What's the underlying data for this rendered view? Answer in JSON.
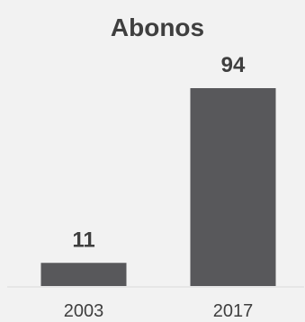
{
  "chart_data": {
    "type": "bar",
    "title": "Abonos",
    "categories": [
      "2003",
      "2017"
    ],
    "values": [
      11,
      94
    ],
    "data_labels": [
      "11",
      "94"
    ],
    "xlabel": "",
    "ylabel": "",
    "ylim": [
      0,
      94
    ],
    "grid": false,
    "legend": "none",
    "bar_color": "#58585b",
    "axis_color": "#d9d9d9",
    "text_color": "#3f3f3f",
    "background": "#f2f2f2"
  }
}
